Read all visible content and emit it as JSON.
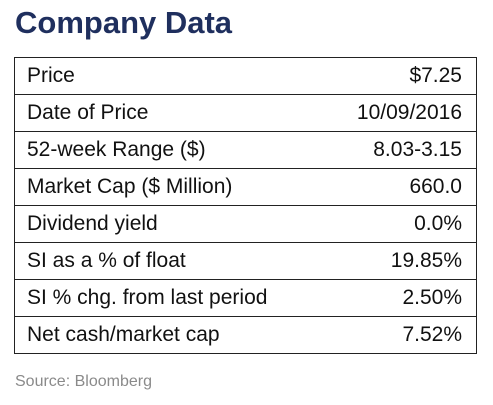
{
  "title": "Company Data",
  "rows": [
    {
      "label": "Price",
      "value": "$7.25"
    },
    {
      "label": "Date of Price",
      "value": "10/09/2016"
    },
    {
      "label": "52-week Range ($)",
      "value": "8.03-3.15"
    },
    {
      "label": "Market Cap ($ Million)",
      "value": "660.0"
    },
    {
      "label": "Dividend yield",
      "value": "0.0%"
    },
    {
      "label": "SI as a % of float",
      "value": "19.85%"
    },
    {
      "label": "SI % chg. from last period",
      "value": "2.50%"
    },
    {
      "label": "Net cash/market cap",
      "value": "7.52%"
    }
  ],
  "source": "Source: Bloomberg",
  "colors": {
    "title": "#1f2f5e",
    "text": "#111111",
    "border": "#222222",
    "source": "#8a8a8a"
  }
}
